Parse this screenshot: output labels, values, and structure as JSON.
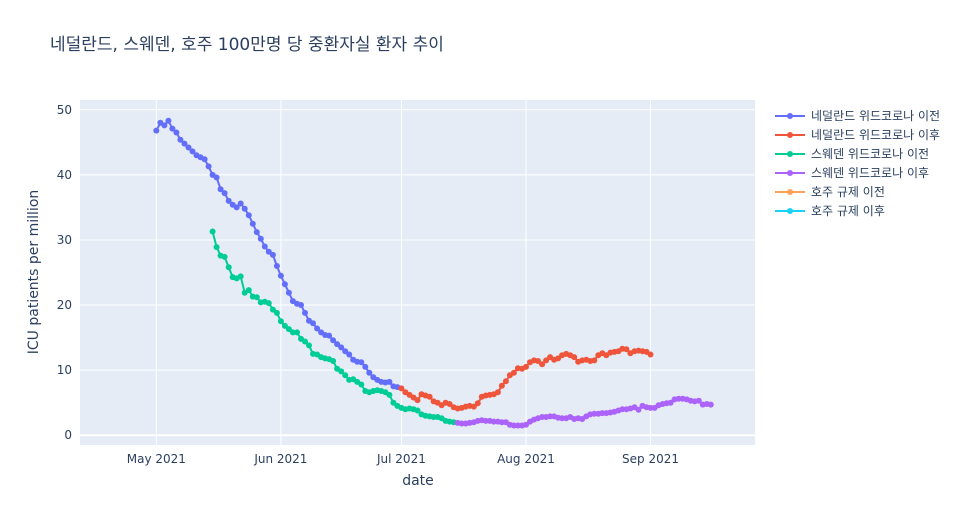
{
  "chart_data": {
    "type": "line",
    "title": "네덜란드, 스웨덴, 호주 100만명 당 중환자실 환자 추이",
    "xlabel": "date",
    "ylabel": "ICU patients per million",
    "x_range": [
      "2021-04-12",
      "2021-09-27"
    ],
    "ylim": [
      -1.5,
      51.5
    ],
    "x_ticks": [
      {
        "date": "2021-05-01",
        "label": "May 2021"
      },
      {
        "date": "2021-06-01",
        "label": "Jun 2021"
      },
      {
        "date": "2021-07-01",
        "label": "Jul 2021"
      },
      {
        "date": "2021-08-01",
        "label": "Aug 2021"
      },
      {
        "date": "2021-09-01",
        "label": "Sep 2021"
      }
    ],
    "y_ticks": [
      0,
      10,
      20,
      30,
      40,
      50
    ],
    "grid": true,
    "legend_position": "right",
    "series": [
      {
        "name": "네덜란드 위드코로나 이전",
        "color": "#636efa",
        "points": [
          [
            "2021-05-01",
            46.8
          ],
          [
            "2021-05-02",
            48.0
          ],
          [
            "2021-05-03",
            47.6
          ],
          [
            "2021-05-04",
            48.3
          ],
          [
            "2021-05-05",
            47.1
          ],
          [
            "2021-05-06",
            46.5
          ],
          [
            "2021-05-07",
            45.4
          ],
          [
            "2021-05-08",
            44.8
          ],
          [
            "2021-05-09",
            44.2
          ],
          [
            "2021-05-10",
            43.6
          ],
          [
            "2021-05-11",
            43.0
          ],
          [
            "2021-05-12",
            42.7
          ],
          [
            "2021-05-13",
            42.4
          ],
          [
            "2021-05-14",
            41.3
          ],
          [
            "2021-05-15",
            40.0
          ],
          [
            "2021-05-16",
            39.6
          ],
          [
            "2021-05-17",
            37.8
          ],
          [
            "2021-05-18",
            37.2
          ],
          [
            "2021-05-19",
            36.0
          ],
          [
            "2021-05-20",
            35.4
          ],
          [
            "2021-05-21",
            35.0
          ],
          [
            "2021-05-22",
            35.6
          ],
          [
            "2021-05-23",
            34.8
          ],
          [
            "2021-05-24",
            33.8
          ],
          [
            "2021-05-25",
            32.5
          ],
          [
            "2021-05-26",
            31.2
          ],
          [
            "2021-05-27",
            30.2
          ],
          [
            "2021-05-28",
            29.0
          ],
          [
            "2021-05-29",
            28.2
          ],
          [
            "2021-05-30",
            27.7
          ],
          [
            "2021-05-31",
            26.0
          ],
          [
            "2021-06-01",
            24.5
          ],
          [
            "2021-06-02",
            23.2
          ],
          [
            "2021-06-03",
            21.9
          ],
          [
            "2021-06-04",
            20.6
          ],
          [
            "2021-06-05",
            20.2
          ],
          [
            "2021-06-06",
            20.0
          ],
          [
            "2021-06-07",
            18.8
          ],
          [
            "2021-06-08",
            17.6
          ],
          [
            "2021-06-09",
            17.2
          ],
          [
            "2021-06-10",
            16.4
          ],
          [
            "2021-06-11",
            15.8
          ],
          [
            "2021-06-12",
            15.4
          ],
          [
            "2021-06-13",
            15.3
          ],
          [
            "2021-06-14",
            14.6
          ],
          [
            "2021-06-15",
            14.0
          ],
          [
            "2021-06-16",
            13.5
          ],
          [
            "2021-06-17",
            12.9
          ],
          [
            "2021-06-18",
            12.4
          ],
          [
            "2021-06-19",
            11.6
          ],
          [
            "2021-06-20",
            11.3
          ],
          [
            "2021-06-21",
            11.2
          ],
          [
            "2021-06-22",
            10.5
          ],
          [
            "2021-06-23",
            9.6
          ],
          [
            "2021-06-24",
            8.9
          ],
          [
            "2021-06-25",
            8.5
          ],
          [
            "2021-06-26",
            8.2
          ],
          [
            "2021-06-27",
            8.1
          ],
          [
            "2021-06-28",
            8.2
          ],
          [
            "2021-06-29",
            7.5
          ],
          [
            "2021-06-30",
            7.4
          ]
        ]
      },
      {
        "name": "네덜란드 위드코로나 이후",
        "color": "#ef553b",
        "points": [
          [
            "2021-07-01",
            7.2
          ],
          [
            "2021-07-02",
            6.6
          ],
          [
            "2021-07-03",
            6.2
          ],
          [
            "2021-07-04",
            5.8
          ],
          [
            "2021-07-05",
            5.4
          ],
          [
            "2021-07-06",
            6.3
          ],
          [
            "2021-07-07",
            6.1
          ],
          [
            "2021-07-08",
            5.9
          ],
          [
            "2021-07-09",
            5.2
          ],
          [
            "2021-07-10",
            5.0
          ],
          [
            "2021-07-11",
            4.6
          ],
          [
            "2021-07-12",
            5.0
          ],
          [
            "2021-07-13",
            4.8
          ],
          [
            "2021-07-14",
            4.3
          ],
          [
            "2021-07-15",
            4.1
          ],
          [
            "2021-07-16",
            4.2
          ],
          [
            "2021-07-17",
            4.4
          ],
          [
            "2021-07-18",
            4.5
          ],
          [
            "2021-07-19",
            4.4
          ],
          [
            "2021-07-20",
            4.9
          ],
          [
            "2021-07-21",
            5.9
          ],
          [
            "2021-07-22",
            6.1
          ],
          [
            "2021-07-23",
            6.2
          ],
          [
            "2021-07-24",
            6.3
          ],
          [
            "2021-07-25",
            6.6
          ],
          [
            "2021-07-26",
            7.6
          ],
          [
            "2021-07-27",
            8.3
          ],
          [
            "2021-07-28",
            9.2
          ],
          [
            "2021-07-29",
            9.6
          ],
          [
            "2021-07-30",
            10.3
          ],
          [
            "2021-07-31",
            10.2
          ],
          [
            "2021-08-01",
            10.5
          ],
          [
            "2021-08-02",
            11.2
          ],
          [
            "2021-08-03",
            11.5
          ],
          [
            "2021-08-04",
            11.4
          ],
          [
            "2021-08-05",
            10.9
          ],
          [
            "2021-08-06",
            11.5
          ],
          [
            "2021-08-07",
            12.0
          ],
          [
            "2021-08-08",
            11.6
          ],
          [
            "2021-08-09",
            11.8
          ],
          [
            "2021-08-10",
            12.3
          ],
          [
            "2021-08-11",
            12.5
          ],
          [
            "2021-08-12",
            12.3
          ],
          [
            "2021-08-13",
            12.0
          ],
          [
            "2021-08-14",
            11.3
          ],
          [
            "2021-08-15",
            11.5
          ],
          [
            "2021-08-16",
            11.6
          ],
          [
            "2021-08-17",
            11.4
          ],
          [
            "2021-08-18",
            11.5
          ],
          [
            "2021-08-19",
            12.3
          ],
          [
            "2021-08-20",
            12.6
          ],
          [
            "2021-08-21",
            12.3
          ],
          [
            "2021-08-22",
            12.7
          ],
          [
            "2021-08-23",
            12.8
          ],
          [
            "2021-08-24",
            12.9
          ],
          [
            "2021-08-25",
            13.3
          ],
          [
            "2021-08-26",
            13.2
          ],
          [
            "2021-08-27",
            12.6
          ],
          [
            "2021-08-28",
            12.9
          ],
          [
            "2021-08-29",
            13.0
          ],
          [
            "2021-08-30",
            12.9
          ],
          [
            "2021-08-31",
            12.8
          ],
          [
            "2021-09-01",
            12.4
          ]
        ]
      },
      {
        "name": "스웨덴 위드코로나 이전",
        "color": "#00cc96",
        "points": [
          [
            "2021-05-15",
            31.3
          ],
          [
            "2021-05-16",
            28.9
          ],
          [
            "2021-05-17",
            27.6
          ],
          [
            "2021-05-18",
            27.4
          ],
          [
            "2021-05-19",
            25.8
          ],
          [
            "2021-05-20",
            24.3
          ],
          [
            "2021-05-21",
            24.1
          ],
          [
            "2021-05-22",
            24.4
          ],
          [
            "2021-05-23",
            21.9
          ],
          [
            "2021-05-24",
            22.3
          ],
          [
            "2021-05-25",
            21.3
          ],
          [
            "2021-05-26",
            21.2
          ],
          [
            "2021-05-27",
            20.4
          ],
          [
            "2021-05-28",
            20.5
          ],
          [
            "2021-05-29",
            20.3
          ],
          [
            "2021-05-30",
            19.3
          ],
          [
            "2021-05-31",
            18.8
          ],
          [
            "2021-06-01",
            17.5
          ],
          [
            "2021-06-02",
            16.8
          ],
          [
            "2021-06-03",
            16.3
          ],
          [
            "2021-06-04",
            15.8
          ],
          [
            "2021-06-05",
            15.8
          ],
          [
            "2021-06-06",
            14.8
          ],
          [
            "2021-06-07",
            14.4
          ],
          [
            "2021-06-08",
            13.8
          ],
          [
            "2021-06-09",
            12.5
          ],
          [
            "2021-06-10",
            12.4
          ],
          [
            "2021-06-11",
            12.0
          ],
          [
            "2021-06-12",
            11.8
          ],
          [
            "2021-06-13",
            11.7
          ],
          [
            "2021-06-14",
            11.4
          ],
          [
            "2021-06-15",
            10.2
          ],
          [
            "2021-06-16",
            9.8
          ],
          [
            "2021-06-17",
            9.2
          ],
          [
            "2021-06-18",
            8.5
          ],
          [
            "2021-06-19",
            8.6
          ],
          [
            "2021-06-20",
            8.2
          ],
          [
            "2021-06-21",
            7.8
          ],
          [
            "2021-06-22",
            6.8
          ],
          [
            "2021-06-23",
            6.6
          ],
          [
            "2021-06-24",
            6.8
          ],
          [
            "2021-06-25",
            6.9
          ],
          [
            "2021-06-26",
            6.8
          ],
          [
            "2021-06-27",
            6.6
          ],
          [
            "2021-06-28",
            6.2
          ],
          [
            "2021-06-29",
            5.0
          ],
          [
            "2021-06-30",
            4.5
          ],
          [
            "2021-07-01",
            4.2
          ],
          [
            "2021-07-02",
            4.0
          ],
          [
            "2021-07-03",
            4.1
          ],
          [
            "2021-07-04",
            4.0
          ],
          [
            "2021-07-05",
            3.8
          ],
          [
            "2021-07-06",
            3.2
          ],
          [
            "2021-07-07",
            3.0
          ],
          [
            "2021-07-08",
            2.9
          ],
          [
            "2021-07-09",
            2.8
          ],
          [
            "2021-07-10",
            2.8
          ],
          [
            "2021-07-11",
            2.6
          ],
          [
            "2021-07-12",
            2.2
          ],
          [
            "2021-07-13",
            2.1
          ],
          [
            "2021-07-14",
            2.0
          ]
        ]
      },
      {
        "name": "스웨덴 위드코로나 이후",
        "color": "#ab63fa",
        "points": [
          [
            "2021-07-15",
            1.9
          ],
          [
            "2021-07-16",
            1.8
          ],
          [
            "2021-07-17",
            1.8
          ],
          [
            "2021-07-18",
            1.9
          ],
          [
            "2021-07-19",
            2.0
          ],
          [
            "2021-07-20",
            2.2
          ],
          [
            "2021-07-21",
            2.3
          ],
          [
            "2021-07-22",
            2.2
          ],
          [
            "2021-07-23",
            2.2
          ],
          [
            "2021-07-24",
            2.1
          ],
          [
            "2021-07-25",
            2.1
          ],
          [
            "2021-07-26",
            2.0
          ],
          [
            "2021-07-27",
            2.0
          ],
          [
            "2021-07-28",
            1.6
          ],
          [
            "2021-07-29",
            1.5
          ],
          [
            "2021-07-30",
            1.5
          ],
          [
            "2021-07-31",
            1.5
          ],
          [
            "2021-08-01",
            1.6
          ],
          [
            "2021-08-02",
            2.1
          ],
          [
            "2021-08-03",
            2.4
          ],
          [
            "2021-08-04",
            2.6
          ],
          [
            "2021-08-05",
            2.8
          ],
          [
            "2021-08-06",
            2.8
          ],
          [
            "2021-08-07",
            2.9
          ],
          [
            "2021-08-08",
            2.9
          ],
          [
            "2021-08-09",
            2.7
          ],
          [
            "2021-08-10",
            2.6
          ],
          [
            "2021-08-11",
            2.6
          ],
          [
            "2021-08-12",
            2.8
          ],
          [
            "2021-08-13",
            2.5
          ],
          [
            "2021-08-14",
            2.6
          ],
          [
            "2021-08-15",
            2.5
          ],
          [
            "2021-08-16",
            2.9
          ],
          [
            "2021-08-17",
            3.2
          ],
          [
            "2021-08-18",
            3.3
          ],
          [
            "2021-08-19",
            3.3
          ],
          [
            "2021-08-20",
            3.4
          ],
          [
            "2021-08-21",
            3.4
          ],
          [
            "2021-08-22",
            3.5
          ],
          [
            "2021-08-23",
            3.6
          ],
          [
            "2021-08-24",
            3.8
          ],
          [
            "2021-08-25",
            4.0
          ],
          [
            "2021-08-26",
            4.0
          ],
          [
            "2021-08-27",
            4.1
          ],
          [
            "2021-08-28",
            4.3
          ],
          [
            "2021-08-29",
            3.9
          ],
          [
            "2021-08-30",
            4.5
          ],
          [
            "2021-08-31",
            4.3
          ],
          [
            "2021-09-01",
            4.2
          ],
          [
            "2021-09-02",
            4.2
          ],
          [
            "2021-09-03",
            4.6
          ],
          [
            "2021-09-04",
            4.8
          ],
          [
            "2021-09-05",
            4.9
          ],
          [
            "2021-09-06",
            5.0
          ],
          [
            "2021-09-07",
            5.5
          ],
          [
            "2021-09-08",
            5.6
          ],
          [
            "2021-09-09",
            5.6
          ],
          [
            "2021-09-10",
            5.5
          ],
          [
            "2021-09-11",
            5.3
          ],
          [
            "2021-09-12",
            5.2
          ],
          [
            "2021-09-13",
            5.3
          ],
          [
            "2021-09-14",
            4.7
          ],
          [
            "2021-09-15",
            4.8
          ],
          [
            "2021-09-16",
            4.7
          ]
        ]
      },
      {
        "name": "호주 규제 이전",
        "color": "#ffa15a",
        "points": []
      },
      {
        "name": "호주 규제 이후",
        "color": "#19d3f3",
        "points": []
      }
    ]
  }
}
